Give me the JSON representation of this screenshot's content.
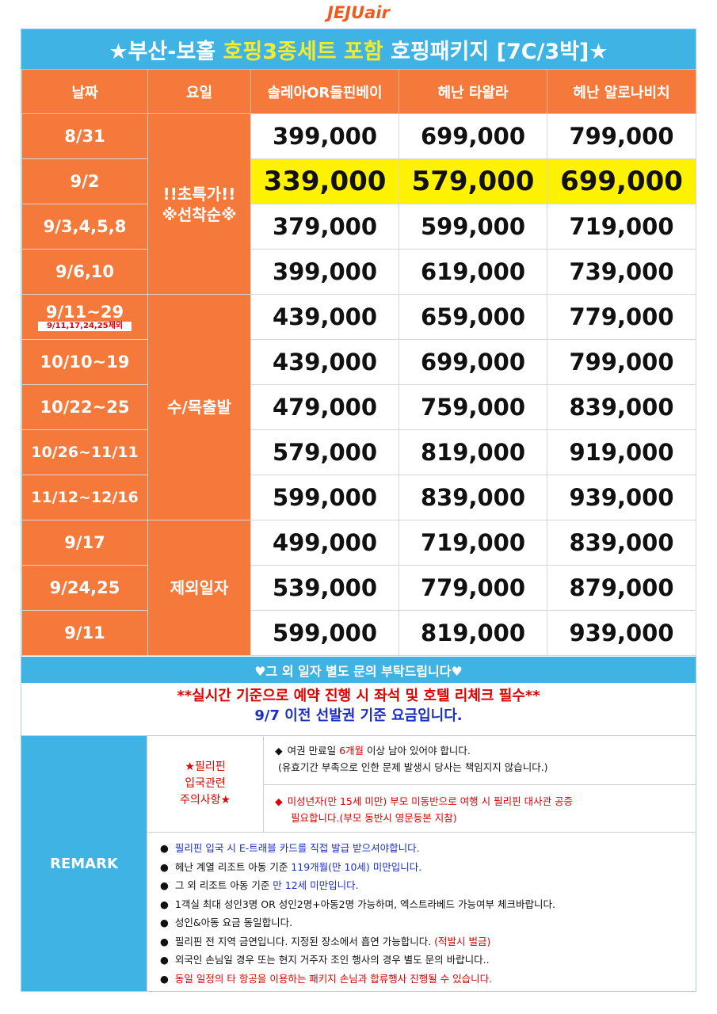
{
  "logo": "JEJUair",
  "title": {
    "part1": "★부산-보홀 ",
    "highlight": "호핑3종세트 포함",
    "part2": " 호핑패키지 [7C/3박]★"
  },
  "table": {
    "headers": [
      "날짜",
      "요일",
      "솔레아OR돌핀베이",
      "헤난 타왈라",
      "헤난 알로나비치"
    ],
    "groups": [
      {
        "label_line1": "!!초특가!!",
        "label_line2": "※선착순※"
      },
      {
        "label_line1": "수/목출발",
        "label_line2": ""
      },
      {
        "label_line1": "제외일자",
        "label_line2": ""
      }
    ],
    "rows": [
      {
        "date": "8/31",
        "sub": "",
        "prices": [
          "399,000",
          "699,000",
          "799,000"
        ]
      },
      {
        "date": "9/2",
        "sub": "",
        "prices": [
          "339,000",
          "579,000",
          "699,000"
        ]
      },
      {
        "date": "9/3,4,5,8",
        "sub": "",
        "prices": [
          "379,000",
          "599,000",
          "719,000"
        ]
      },
      {
        "date": "9/6,10",
        "sub": "",
        "prices": [
          "399,000",
          "619,000",
          "739,000"
        ]
      },
      {
        "date": "9/11~29",
        "sub": "9/11,17,24,25제외",
        "prices": [
          "439,000",
          "659,000",
          "779,000"
        ]
      },
      {
        "date": "10/10~19",
        "sub": "",
        "prices": [
          "439,000",
          "699,000",
          "799,000"
        ]
      },
      {
        "date": "10/22~25",
        "sub": "",
        "prices": [
          "479,000",
          "759,000",
          "839,000"
        ]
      },
      {
        "date": "10/26~11/11",
        "sub": "",
        "prices": [
          "579,000",
          "819,000",
          "919,000"
        ]
      },
      {
        "date": "11/12~12/16",
        "sub": "",
        "prices": [
          "599,000",
          "839,000",
          "939,000"
        ]
      },
      {
        "date": "9/17",
        "sub": "",
        "prices": [
          "499,000",
          "719,000",
          "839,000"
        ]
      },
      {
        "date": "9/24,25",
        "sub": "",
        "prices": [
          "539,000",
          "779,000",
          "879,000"
        ]
      },
      {
        "date": "9/11",
        "sub": "",
        "prices": [
          "599,000",
          "819,000",
          "939,000"
        ]
      }
    ]
  },
  "notice_bar": "♥그 외 일자 별도 문의 부탁드립니다♥",
  "warning": {
    "line1": "**실시간 기준으로 예약 진행 시 좌석 및 호텔 리체크 필수**",
    "line2": "9/7 이전 선발권 기준 요금입니다."
  },
  "remark": {
    "label": "REMARK",
    "caution_label_line1": "★필리핀",
    "caution_label_line2": "입국관련",
    "caution_label_line3": "주의사항★",
    "caution1_a": "여권 만료일 ",
    "caution1_red": "6개월",
    "caution1_b": " 이상 남아 있어야 합니다.",
    "caution1_line2": "(유효기간 부족으로 인한 문제 발생시 당사는 책임지지 않습니다.)",
    "caution2_line1": "미성년자(만 15세 미만) 부모 미동반으로 여행 시 필리핀 대사관 공증",
    "caution2_line2": "필요합니다.(부모 동반시 영문등본 지참)",
    "items": [
      {
        "text": "필리핀 입국 시 E-트래블 카드를 직접 발급 받으셔야합니다.",
        "pre": "",
        "accent": "",
        "post": ""
      },
      {
        "text": "",
        "pre": "헤난 계열 리조트 아동 기준 ",
        "accent": "119개월(만 10세) 미만입니다.",
        "post": ""
      },
      {
        "text": "",
        "pre": "그 외 리조트 아동 기준 ",
        "accent": "만 12세 미만입니다.",
        "post": ""
      },
      {
        "text": "1객실 최대 성인3명 OR 성인2명+아동2명 가능하며, 엑스트라베드 가능여부 체크바랍니다.",
        "pre": "",
        "accent": "",
        "post": ""
      },
      {
        "text": "성인&아동 요금 동일합니다.",
        "pre": "",
        "accent": "",
        "post": ""
      },
      {
        "text": "",
        "pre": "필리핀 전 지역 금연입니다. 지정된 장소에서 흡연 가능합니다. ",
        "accent": "(적발시 벌금)",
        "post": ""
      },
      {
        "text": "외국인 손님일 경우 또는 현지 거주자 조인 행사의 경우 별도 문의 바랍니다..",
        "pre": "",
        "accent": "",
        "post": ""
      },
      {
        "text": "동일 일정의 타 항공을 이용하는 패키지 손님과 합류행사 진행될 수 있습니다.",
        "pre": "",
        "accent": "",
        "post": ""
      }
    ]
  },
  "colors": {
    "orange": "#f5793a",
    "sky": "#3fb3e4",
    "highlight_yellow": "#fff200",
    "red": "#e00000",
    "blue": "#1a2ec8"
  }
}
